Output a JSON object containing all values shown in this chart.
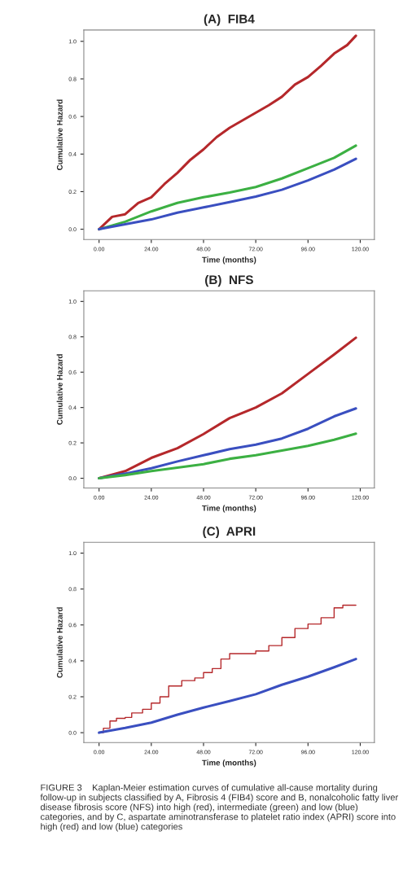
{
  "chart_data": [
    {
      "type": "line",
      "title": "(A)  FIB4",
      "xlabel": "Time (months)",
      "ylabel": "Cumulative Hazard",
      "xlim": [
        -7,
        126.5
      ],
      "ylim": [
        -0.055,
        1.06
      ],
      "xticks": [
        {
          "value": 0,
          "label": "0.00"
        },
        {
          "value": 24,
          "label": "24.00"
        },
        {
          "value": 48,
          "label": "48.00"
        },
        {
          "value": 72,
          "label": "72.00"
        },
        {
          "value": 96,
          "label": "96.00"
        },
        {
          "value": 120,
          "label": "120.00"
        }
      ],
      "yticks": [
        {
          "value": 0,
          "label": "0.0"
        },
        {
          "value": 0.2,
          "label": "0.2"
        },
        {
          "value": 0.4,
          "label": "0.4"
        },
        {
          "value": 0.6,
          "label": "0.6"
        },
        {
          "value": 0.8,
          "label": "0.8"
        },
        {
          "value": 1.0,
          "label": "1.0"
        }
      ],
      "series": [
        {
          "color": "#b5282b",
          "x": [
            0,
            6,
            12,
            18,
            24,
            30,
            36,
            42,
            48,
            54,
            60,
            66,
            72,
            78,
            84,
            90,
            96,
            102,
            108,
            114,
            118
          ],
          "values": [
            0,
            0.066,
            0.08,
            0.14,
            0.17,
            0.24,
            0.3,
            0.37,
            0.425,
            0.49,
            0.54,
            0.58,
            0.62,
            0.66,
            0.705,
            0.77,
            0.81,
            0.87,
            0.935,
            0.98,
            1.03
          ]
        },
        {
          "color": "#3cb043",
          "x": [
            0,
            12,
            24,
            36,
            48,
            60,
            72,
            84,
            96,
            108,
            118
          ],
          "values": [
            0,
            0.04,
            0.095,
            0.14,
            0.17,
            0.195,
            0.225,
            0.27,
            0.325,
            0.38,
            0.445
          ]
        },
        {
          "color": "#3a4fc0",
          "x": [
            0,
            12,
            24,
            36,
            48,
            60,
            72,
            84,
            96,
            108,
            118
          ],
          "values": [
            0,
            0.026,
            0.052,
            0.088,
            0.116,
            0.145,
            0.174,
            0.21,
            0.26,
            0.317,
            0.375
          ]
        }
      ]
    },
    {
      "type": "line",
      "title": "(B)  NFS",
      "xlabel": "Time (months)",
      "ylabel": "Cumulative Hazard",
      "xlim": [
        -7,
        126.5
      ],
      "ylim": [
        -0.055,
        1.06
      ],
      "xticks": [
        {
          "value": 0,
          "label": "0.00"
        },
        {
          "value": 24,
          "label": "24.00"
        },
        {
          "value": 48,
          "label": "48.00"
        },
        {
          "value": 72,
          "label": "72.00"
        },
        {
          "value": 96,
          "label": "96.00"
        },
        {
          "value": 120,
          "label": "120.00"
        }
      ],
      "yticks": [
        {
          "value": 0,
          "label": "0.0"
        },
        {
          "value": 0.2,
          "label": "0.2"
        },
        {
          "value": 0.4,
          "label": "0.4"
        },
        {
          "value": 0.6,
          "label": "0.6"
        },
        {
          "value": 0.8,
          "label": "0.8"
        },
        {
          "value": 1.0,
          "label": "1.0"
        }
      ],
      "series": [
        {
          "color": "#b5282b",
          "x": [
            0,
            12,
            24,
            36,
            48,
            60,
            72,
            84,
            96,
            108,
            118
          ],
          "values": [
            0,
            0.04,
            0.115,
            0.17,
            0.25,
            0.34,
            0.4,
            0.48,
            0.59,
            0.7,
            0.795
          ]
        },
        {
          "color": "#3a4fc0",
          "x": [
            0,
            12,
            24,
            36,
            48,
            60,
            72,
            84,
            96,
            108,
            118
          ],
          "values": [
            0,
            0.026,
            0.057,
            0.095,
            0.13,
            0.165,
            0.19,
            0.225,
            0.28,
            0.35,
            0.395
          ]
        },
        {
          "color": "#3cb043",
          "x": [
            0,
            12,
            24,
            36,
            48,
            60,
            72,
            84,
            96,
            108,
            118
          ],
          "values": [
            0,
            0.018,
            0.04,
            0.06,
            0.08,
            0.11,
            0.13,
            0.157,
            0.183,
            0.218,
            0.252
          ]
        }
      ]
    },
    {
      "type": "line",
      "title": "(C)  APRI",
      "xlabel": "Time (months)",
      "ylabel": "Cumulative Hazard",
      "xlim": [
        -7,
        126.5
      ],
      "ylim": [
        -0.055,
        1.06
      ],
      "xticks": [
        {
          "value": 0,
          "label": "0.00"
        },
        {
          "value": 24,
          "label": "24.00"
        },
        {
          "value": 48,
          "label": "48.00"
        },
        {
          "value": 72,
          "label": "72.00"
        },
        {
          "value": 96,
          "label": "96.00"
        },
        {
          "value": 120,
          "label": "120.00"
        }
      ],
      "yticks": [
        {
          "value": 0,
          "label": "0.0"
        },
        {
          "value": 0.2,
          "label": "0.2"
        },
        {
          "value": 0.4,
          "label": "0.4"
        },
        {
          "value": 0.6,
          "label": "0.6"
        },
        {
          "value": 0.8,
          "label": "0.8"
        },
        {
          "value": 1.0,
          "label": "1.0"
        }
      ],
      "series": [
        {
          "type": "step",
          "color": "#b5282b",
          "x": [
            0,
            2,
            5,
            8,
            12,
            15,
            20,
            24,
            28,
            32,
            38,
            44,
            48,
            52,
            56,
            60,
            72,
            78,
            84,
            90,
            96,
            102,
            108,
            112,
            118
          ],
          "values": [
            0,
            0.025,
            0.065,
            0.08,
            0.085,
            0.11,
            0.13,
            0.165,
            0.2,
            0.26,
            0.29,
            0.305,
            0.335,
            0.357,
            0.41,
            0.44,
            0.455,
            0.485,
            0.53,
            0.58,
            0.605,
            0.64,
            0.695,
            0.71,
            0.71
          ]
        },
        {
          "color": "#3a4fc0",
          "x": [
            0,
            12,
            24,
            36,
            48,
            60,
            72,
            84,
            96,
            108,
            118
          ],
          "values": [
            0,
            0.026,
            0.056,
            0.1,
            0.14,
            0.176,
            0.214,
            0.267,
            0.312,
            0.364,
            0.41
          ]
        }
      ],
      "annotations": [
        "FIGURE 3    Kaplan-Meier estimation curves of cumulative all-cause mortality during follow-up in subjects classified by A, Fibrosis 4 (FIB4) score and B, nonalcoholic fatty liver disease fibrosis score (NFS) into high (red), intermediate (green) and low (blue) categories, and by C, aspartate aminotransferase to platelet ratio index (APRI) score into high (red) and low (blue) categories"
      ]
    }
  ]
}
